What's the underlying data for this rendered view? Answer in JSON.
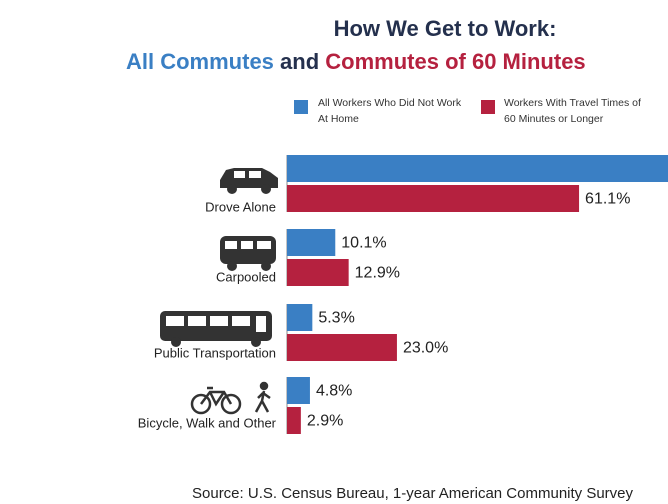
{
  "chart_data": {
    "type": "bar",
    "title": {
      "line1": "How We Get to Work:",
      "part1": "All Commutes",
      "part2": "and",
      "part3": "Commutes of 60 Minutes"
    },
    "categories": [
      "Drove Alone",
      "Carpooled",
      "Public Transportation",
      "Bicycle, Walk and Other"
    ],
    "series": [
      {
        "name": "All Workers Who Did Not Work At Home",
        "color": "#3a7fc4",
        "values": [
          80,
          10.1,
          5.3,
          4.8
        ],
        "value_labels": [
          null,
          "10.1%",
          "5.3%",
          "4.8%"
        ]
      },
      {
        "name": "Workers With Travel Times of 60 Minutes or Longer",
        "color": "#b5213f",
        "values": [
          61.1,
          12.9,
          23.0,
          2.9
        ],
        "value_labels": [
          "61.1%",
          "12.9%",
          "23.0%",
          "2.9%"
        ]
      }
    ],
    "source": "Source: U.S. Census Bureau, 1-year American Community Survey"
  }
}
